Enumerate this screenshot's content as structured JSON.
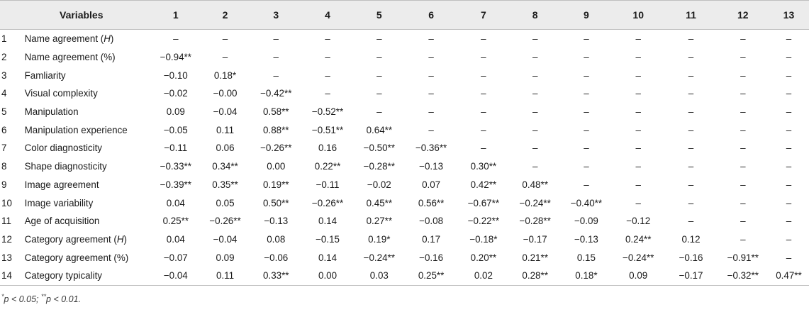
{
  "table": {
    "header_label": "Variables",
    "columns": [
      "1",
      "2",
      "3",
      "4",
      "5",
      "6",
      "7",
      "8",
      "9",
      "10",
      "11",
      "12",
      "13"
    ],
    "rows": [
      {
        "num": "1",
        "name": "Name agreement (H)",
        "cells": [
          "–",
          "–",
          "–",
          "–",
          "–",
          "–",
          "–",
          "–",
          "–",
          "–",
          "–",
          "–",
          "–"
        ]
      },
      {
        "num": "2",
        "name": "Name agreement (%)",
        "cells": [
          "−0.94**",
          "–",
          "–",
          "–",
          "–",
          "–",
          "–",
          "–",
          "–",
          "–",
          "–",
          "–",
          "–"
        ]
      },
      {
        "num": "3",
        "name": "Famliarity",
        "cells": [
          "−0.10",
          "0.18*",
          "–",
          "–",
          "–",
          "–",
          "–",
          "–",
          "–",
          "–",
          "–",
          "–",
          "–"
        ]
      },
      {
        "num": "4",
        "name": "Visual complexity",
        "cells": [
          "−0.02",
          "−0.00",
          "−0.42**",
          "–",
          "–",
          "–",
          "–",
          "–",
          "–",
          "–",
          "–",
          "–",
          "–"
        ]
      },
      {
        "num": "5",
        "name": "Manipulation",
        "cells": [
          "0.09",
          "−0.04",
          "0.58**",
          "−0.52**",
          "–",
          "–",
          "–",
          "–",
          "–",
          "–",
          "–",
          "–",
          "–"
        ]
      },
      {
        "num": "6",
        "name": "Manipulation experience",
        "cells": [
          "−0.05",
          "0.11",
          "0.88**",
          "−0.51**",
          "0.64**",
          "–",
          "–",
          "–",
          "–",
          "–",
          "–",
          "–",
          "–"
        ]
      },
      {
        "num": "7",
        "name": "Color diagnosticity",
        "cells": [
          "−0.11",
          "0.06",
          "−0.26**",
          "0.16",
          "−0.50**",
          "−0.36**",
          "–",
          "–",
          "–",
          "–",
          "–",
          "–",
          "–"
        ]
      },
      {
        "num": "8",
        "name": "Shape diagnosticity",
        "cells": [
          "−0.33**",
          "0.34**",
          "0.00",
          "0.22**",
          "−0.28**",
          "−0.13",
          "0.30**",
          "–",
          "–",
          "–",
          "–",
          "–",
          "–"
        ]
      },
      {
        "num": "9",
        "name": "Image agreement",
        "cells": [
          "−0.39**",
          "0.35**",
          "0.19**",
          "−0.11",
          "−0.02",
          "0.07",
          "0.42**",
          "0.48**",
          "–",
          "–",
          "–",
          "–",
          "–"
        ]
      },
      {
        "num": "10",
        "name": "Image variability",
        "cells": [
          "0.04",
          "0.05",
          "0.50**",
          "−0.26**",
          "0.45**",
          "0.56**",
          "−0.67**",
          "−0.24**",
          "−0.40**",
          "–",
          "–",
          "–",
          "–"
        ]
      },
      {
        "num": "11",
        "name": "Age of acquisition",
        "cells": [
          "0.25**",
          "−0.26**",
          "−0.13",
          "0.14",
          "0.27**",
          "−0.08",
          "−0.22**",
          "−0.28**",
          "−0.09",
          "−0.12",
          "–",
          "–",
          "–"
        ]
      },
      {
        "num": "12",
        "name": "Category agreement (H)",
        "cells": [
          "0.04",
          "−0.04",
          "0.08",
          "−0.15",
          "0.19*",
          "0.17",
          "−0.18*",
          "−0.17",
          "−0.13",
          "0.24**",
          "0.12",
          "–",
          "–"
        ]
      },
      {
        "num": "13",
        "name": "Category agreement (%)",
        "cells": [
          "−0.07",
          "0.09",
          "−0.06",
          "0.14",
          "−0.24**",
          "−0.16",
          "0.20**",
          "0.21**",
          "0.15",
          "−0.24**",
          "−0.16",
          "−0.91**",
          "–"
        ]
      },
      {
        "num": "14",
        "name": "Category typicality",
        "cells": [
          "−0.04",
          "0.11",
          "0.33**",
          "0.00",
          "0.03",
          "0.25**",
          "0.02",
          "0.28**",
          "0.18*",
          "0.09",
          "−0.17",
          "−0.32**",
          "0.47**"
        ]
      }
    ]
  },
  "footnote": "*p < 0.05; **p < 0.01."
}
